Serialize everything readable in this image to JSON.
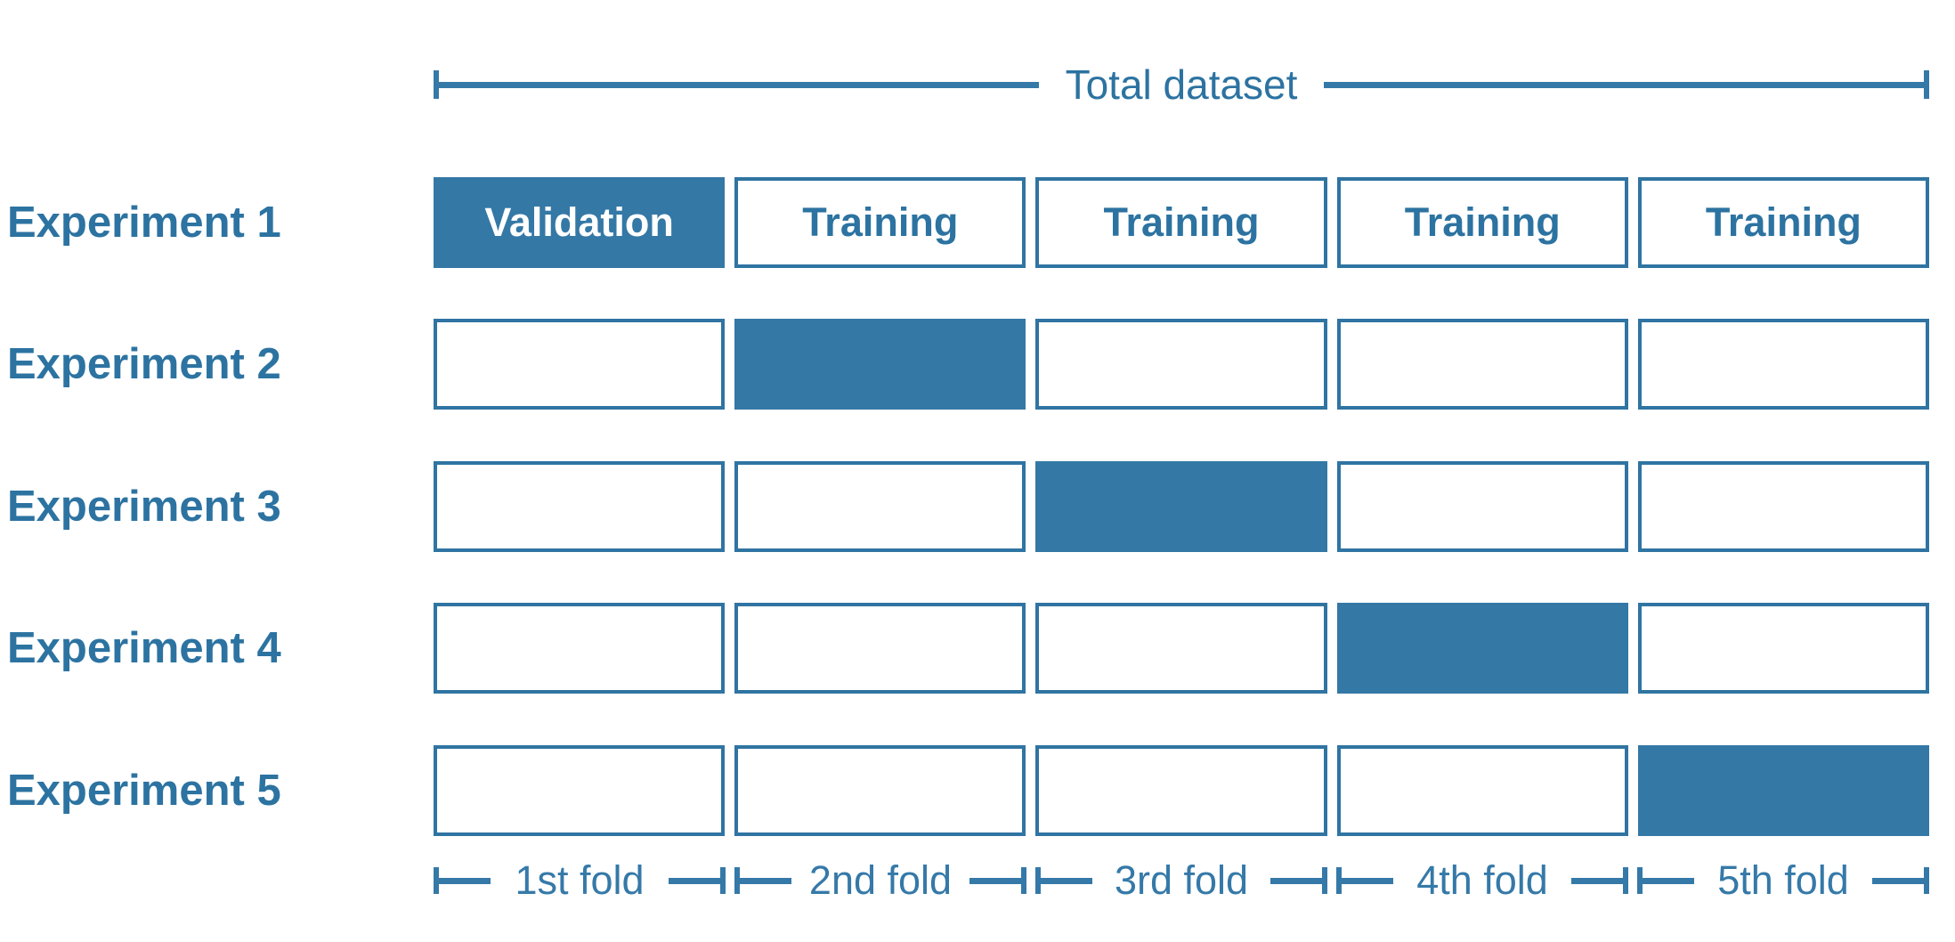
{
  "dataset_bracket": {
    "label": "Total dataset"
  },
  "experiments": [
    {
      "label": "Experiment 1",
      "cells": [
        {
          "text": "Validation",
          "role": "validation"
        },
        {
          "text": "Training",
          "role": "training"
        },
        {
          "text": "Training",
          "role": "training"
        },
        {
          "text": "Training",
          "role": "training"
        },
        {
          "text": "Training",
          "role": "training"
        }
      ]
    },
    {
      "label": "Experiment 2",
      "cells": [
        {
          "text": "",
          "role": "training"
        },
        {
          "text": "",
          "role": "validation"
        },
        {
          "text": "",
          "role": "training"
        },
        {
          "text": "",
          "role": "training"
        },
        {
          "text": "",
          "role": "training"
        }
      ]
    },
    {
      "label": "Experiment 3",
      "cells": [
        {
          "text": "",
          "role": "training"
        },
        {
          "text": "",
          "role": "training"
        },
        {
          "text": "",
          "role": "validation"
        },
        {
          "text": "",
          "role": "training"
        },
        {
          "text": "",
          "role": "training"
        }
      ]
    },
    {
      "label": "Experiment 4",
      "cells": [
        {
          "text": "",
          "role": "training"
        },
        {
          "text": "",
          "role": "training"
        },
        {
          "text": "",
          "role": "training"
        },
        {
          "text": "",
          "role": "validation"
        },
        {
          "text": "",
          "role": "training"
        }
      ]
    },
    {
      "label": "Experiment 5",
      "cells": [
        {
          "text": "",
          "role": "training"
        },
        {
          "text": "",
          "role": "training"
        },
        {
          "text": "",
          "role": "training"
        },
        {
          "text": "",
          "role": "training"
        },
        {
          "text": "",
          "role": "validation"
        }
      ]
    }
  ],
  "fold_axis": {
    "labels": [
      "1st fold",
      "2nd fold",
      "3rd fold",
      "4th fold",
      "5th fold"
    ]
  },
  "colors": {
    "blue_fill": "#3478A6",
    "blue_border": "#2F74A2",
    "blue_line": "#3579A8",
    "blue_text": "#2C73A1",
    "validation_text": "#FFFFFF"
  }
}
